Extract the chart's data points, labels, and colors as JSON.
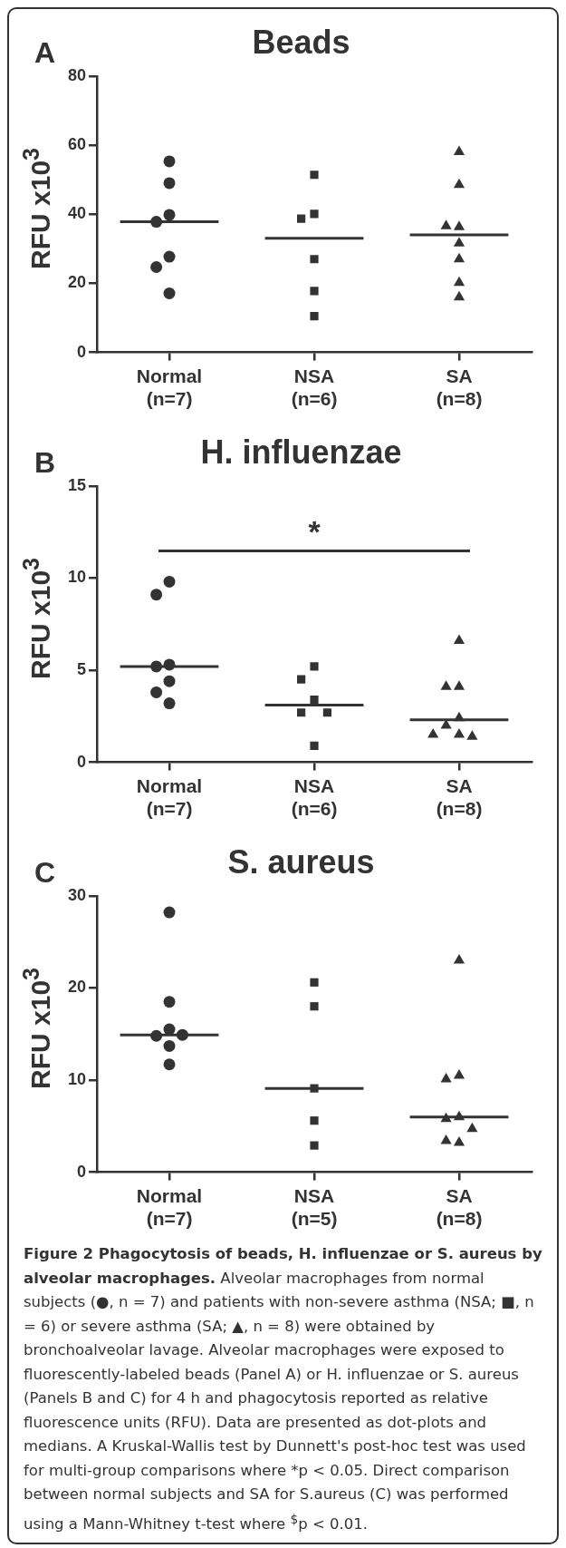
{
  "chart_data": [
    {
      "type": "scatter",
      "title": "Beads",
      "ylabel": "RFU x10$^{3}$",
      "annotations": [
        "A"
      ],
      "categories": [
        "Normal\n(n=7)",
        "NSA\n(n=6)",
        "SA\n(n=8)"
      ],
      "ylim": [
        0,
        80
      ],
      "yticks": [
        0,
        20,
        40,
        60,
        80
      ],
      "series": [
        {
          "color": "#333333",
          "marker": "circle",
          "x": [
            "Normal\n(n=7)",
            "Normal\n(n=7)",
            "Normal\n(n=7)",
            "Normal\n(n=7)",
            "Normal\n(n=7)",
            "Normal\n(n=7)",
            "Normal\n(n=7)"
          ],
          "values": [
            55.3,
            49.0,
            39.8,
            37.8,
            27.7,
            24.7,
            17.1
          ]
        },
        {
          "color": "#333333",
          "marker": "square",
          "x": [
            "NSA\n(n=6)",
            "NSA\n(n=6)",
            "NSA\n(n=6)",
            "NSA\n(n=6)",
            "NSA\n(n=6)",
            "NSA\n(n=6)"
          ],
          "values": [
            51.4,
            40.1,
            38.7,
            27.0,
            17.8,
            10.5
          ]
        },
        {
          "color": "#333333",
          "marker": "triangle",
          "x": [
            "SA\n(n=8)",
            "SA\n(n=8)",
            "SA\n(n=8)",
            "SA\n(n=8)",
            "SA\n(n=8)",
            "SA\n(n=8)",
            "SA\n(n=8)",
            "SA\n(n=8)"
          ],
          "values": [
            58.0,
            48.5,
            36.3,
            36.6,
            31.6,
            27.0,
            20.2,
            16.0
          ]
        }
      ],
      "ref_lines": [
        {
          "axis": "y",
          "value": 37.8,
          "color": "#333333"
        },
        {
          "axis": "y",
          "value": 33.0,
          "color": "#333333"
        },
        {
          "axis": "y",
          "value": 34.0,
          "color": "#333333"
        }
      ]
    },
    {
      "type": "scatter",
      "title": "H. influenzae",
      "ylabel": "RFU x10$^{3}$",
      "annotations": [
        "B",
        "*"
      ],
      "categories": [
        "Normal\n(n=7)",
        "NSA\n(n=6)",
        "SA\n(n=8)"
      ],
      "ylim": [
        0,
        15
      ],
      "yticks": [
        0,
        5,
        10,
        15
      ],
      "series": [
        {
          "color": "#333333",
          "marker": "circle",
          "x": [
            "Normal\n(n=7)",
            "Normal\n(n=7)",
            "Normal\n(n=7)",
            "Normal\n(n=7)",
            "Normal\n(n=7)",
            "Normal\n(n=7)",
            "Normal\n(n=7)"
          ],
          "values": [
            9.8,
            9.1,
            5.3,
            5.2,
            4.4,
            3.8,
            3.2
          ]
        },
        {
          "color": "#333333",
          "marker": "square",
          "x": [
            "NSA\n(n=6)",
            "NSA\n(n=6)",
            "NSA\n(n=6)",
            "NSA\n(n=6)",
            "NSA\n(n=6)",
            "NSA\n(n=6)"
          ],
          "values": [
            5.2,
            4.5,
            3.4,
            2.7,
            2.7,
            0.9
          ]
        },
        {
          "color": "#333333",
          "marker": "triangle",
          "x": [
            "SA\n(n=8)",
            "SA\n(n=8)",
            "SA\n(n=8)",
            "SA\n(n=8)",
            "SA\n(n=8)",
            "SA\n(n=8)",
            "SA\n(n=8)",
            "SA\n(n=8)"
          ],
          "values": [
            6.6,
            4.1,
            4.1,
            2.4,
            2.0,
            1.5,
            1.4,
            1.5
          ]
        }
      ],
      "ref_lines": [
        {
          "axis": "y",
          "value": 5.2,
          "color": "#333333"
        },
        {
          "axis": "y",
          "value": 3.1,
          "color": "#333333"
        },
        {
          "axis": "y",
          "value": 2.3,
          "color": "#333333"
        }
      ]
    },
    {
      "type": "scatter",
      "title": "S. aureus",
      "ylabel": "RFU x10$^{3}$",
      "annotations": [
        "C"
      ],
      "categories": [
        "Normal\n(n=7)",
        "NSA\n(n=5)",
        "SA\n(n=8)"
      ],
      "ylim": [
        0,
        30
      ],
      "yticks": [
        0,
        10,
        20,
        30
      ],
      "series": [
        {
          "color": "#333333",
          "marker": "circle",
          "x": [
            "Normal\n(n=7)",
            "Normal\n(n=7)",
            "Normal\n(n=7)",
            "Normal\n(n=7)",
            "Normal\n(n=7)",
            "Normal\n(n=7)",
            "Normal\n(n=7)"
          ],
          "values": [
            28.2,
            18.5,
            15.5,
            14.8,
            14.9,
            13.7,
            11.7
          ]
        },
        {
          "color": "#333333",
          "marker": "square",
          "x": [
            "NSA\n(n=5)",
            "NSA\n(n=5)",
            "NSA\n(n=5)",
            "NSA\n(n=5)",
            "NSA\n(n=5)"
          ],
          "values": [
            20.6,
            18.0,
            9.1,
            5.6,
            2.9
          ]
        },
        {
          "color": "#333333",
          "marker": "triangle",
          "x": [
            "SA\n(n=8)",
            "SA\n(n=8)",
            "SA\n(n=8)",
            "SA\n(n=8)",
            "SA\n(n=8)",
            "SA\n(n=8)",
            "SA\n(n=8)",
            "SA\n(n=8)"
          ],
          "values": [
            23.0,
            10.5,
            10.1,
            6.0,
            5.8,
            4.7,
            3.2,
            3.4
          ]
        }
      ],
      "ref_lines": [
        {
          "axis": "y",
          "value": 14.9,
          "color": "#333333"
        },
        {
          "axis": "y",
          "value": 9.1,
          "color": "#333333"
        },
        {
          "axis": "y",
          "value": 6.0,
          "color": "#333333"
        }
      ]
    },
    {
      "type": "other",
      "title": "Figure 2 Phagocytosis of beads, H. influenzae or S. aureus by alveolar macrophages.",
      "annotations": [
        "Alveolar macrophages from normal subjects (●, n = 7) and patients with non-severe asthma (NSA; ■, n = 6) or severe asthma (SA; ▲, n = 8) were obtained by bronchoalveolar lavage. Alveolar macrophages were exposed to fluorescently-labeled beads (Panel A) or H. influenzae or S. aureus (Panels B and C) for 4 h and phagocytosis reported as relative fluorescence units (RFU). Data are presented as dot-plots and medians. A Kruskal-Wallis test by Dunnett's post-hoc test was used for multi-group comparisons where *p < 0.05. Direct comparison between normal subjects and SA for S.aureus (C) was performed using a Mann-Whitney t-test where $^{$}$p < 0.01."
      ]
    }
  ]
}
